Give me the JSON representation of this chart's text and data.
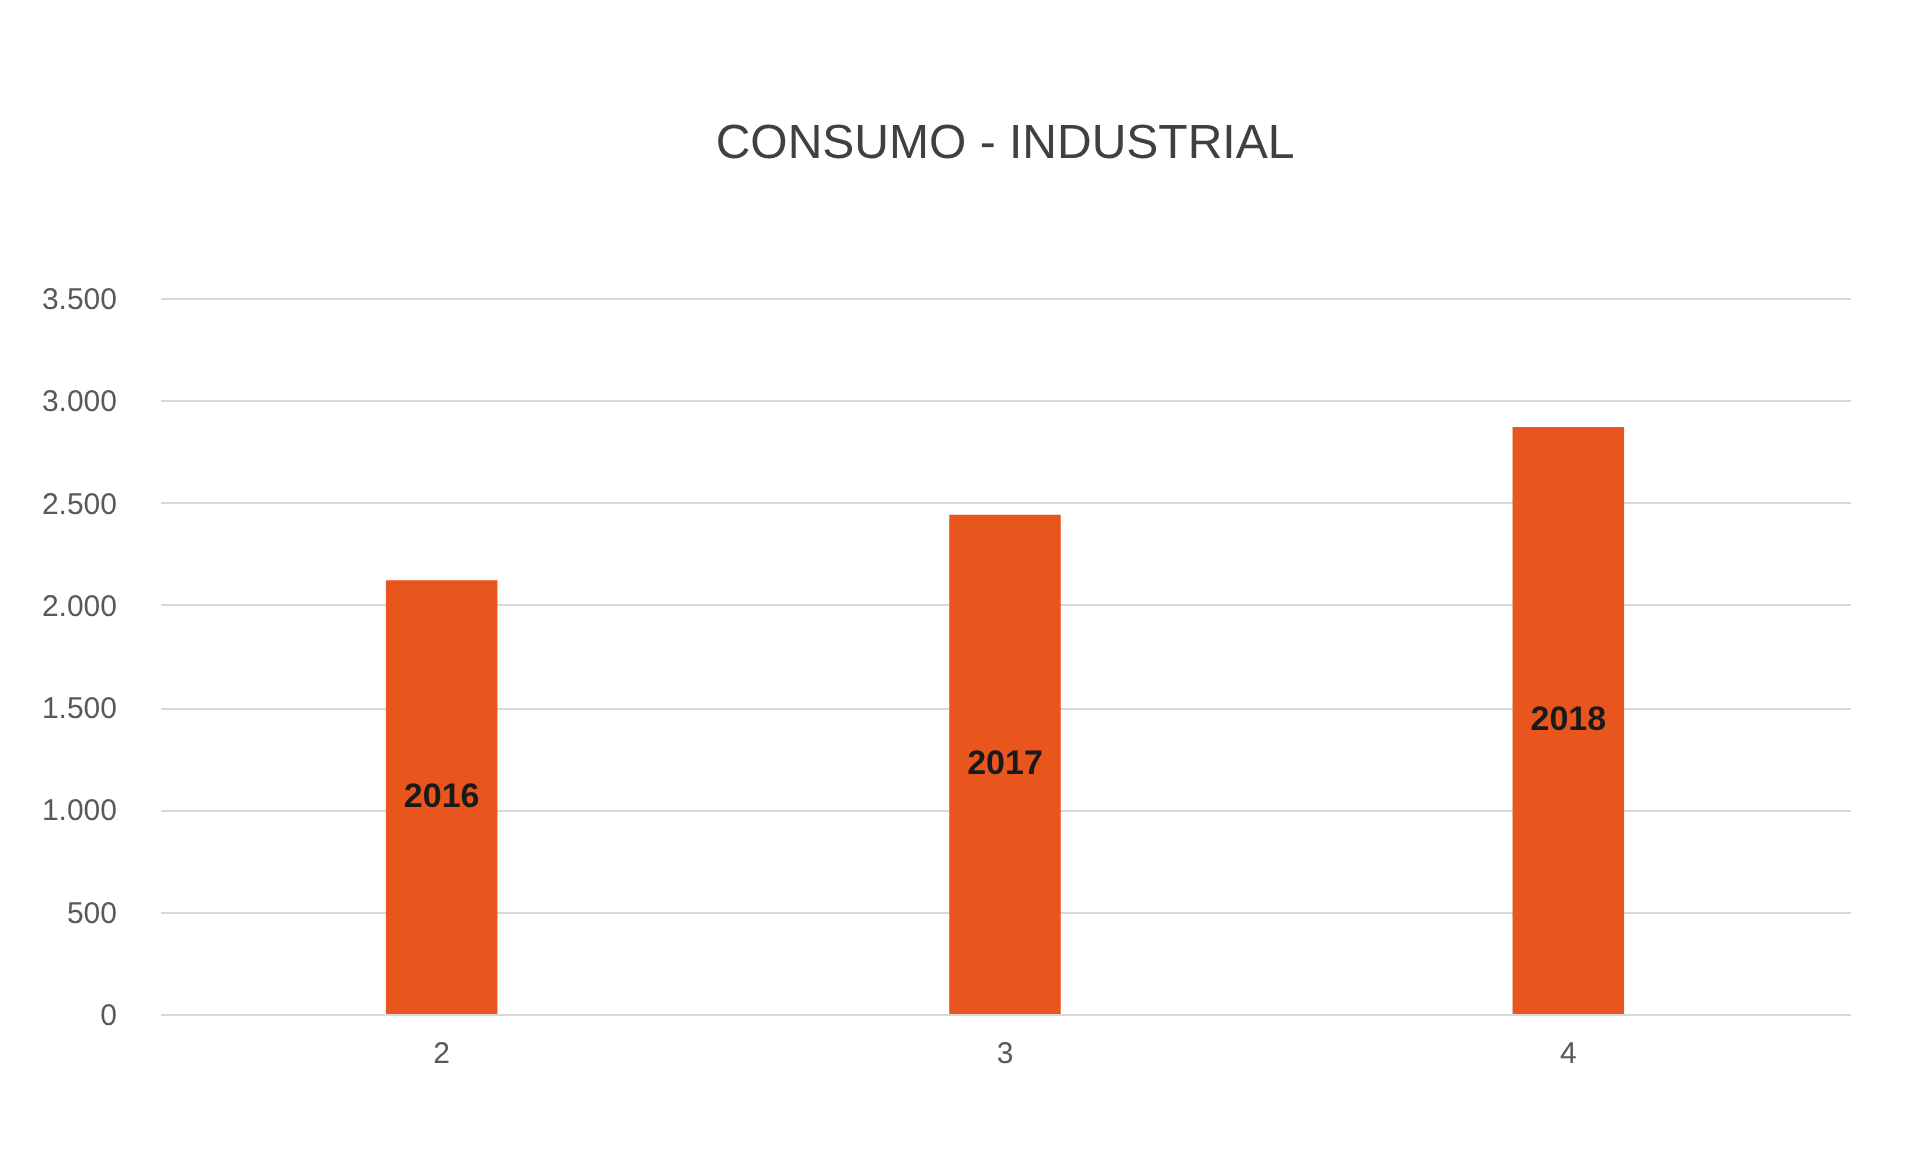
{
  "chart_data": {
    "type": "bar",
    "title": "CONSUMO - INDUSTRIAL",
    "categories": [
      "2",
      "3",
      "4"
    ],
    "values": [
      2120,
      2440,
      2870
    ],
    "color": "#e8561e",
    "annotations": [
      "2016",
      "2017",
      "2018"
    ],
    "ylim": [
      0,
      3500
    ],
    "yticks": [
      {
        "value": 0,
        "label": "0"
      },
      {
        "value": 500,
        "label": "500"
      },
      {
        "value": 1000,
        "label": "1.000"
      },
      {
        "value": 1500,
        "label": "1.500"
      },
      {
        "value": 2000,
        "label": "2.000"
      },
      {
        "value": 2500,
        "label": "2.500"
      },
      {
        "value": 3000,
        "label": "3.000"
      },
      {
        "value": 3500,
        "label": "3.500"
      }
    ],
    "grid": "y"
  }
}
